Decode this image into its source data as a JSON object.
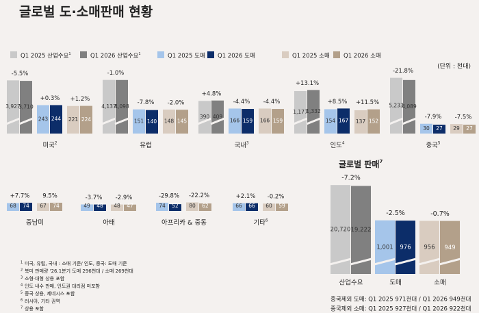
{
  "title": "글로벌 도·소매판매 현황",
  "legend": [
    {
      "label": "Q1 2025 산업수요",
      "note": "1",
      "color": "#c9c9c9"
    },
    {
      "label": "Q1 2026 산업수요",
      "note": "1",
      "color": "#808080"
    },
    {
      "label": "Q1 2025 도매",
      "color": "#a5c5ea"
    },
    {
      "label": "Q1 2026 도매",
      "color": "#0c2d69"
    },
    {
      "label": "Q1 2025 소매",
      "color": "#d9ccc0"
    },
    {
      "label": "Q1 2026 소매",
      "color": "#b3a08a"
    }
  ],
  "unit": "(단위 : 천대)",
  "regions": [
    {
      "name": "미국",
      "note": "2",
      "groups": [
        {
          "values": [
            3927,
            3710
          ],
          "value_labels": [
            "3,927",
            "3,710"
          ],
          "change": "-5.5%"
        },
        {
          "values": [
            243,
            244
          ],
          "change": "+0.3%"
        },
        {
          "values": [
            221,
            224
          ],
          "change": "+1.2%"
        }
      ]
    },
    {
      "name": "유럽",
      "groups": [
        {
          "values": [
            4137,
            4098
          ],
          "value_labels": [
            "4,137",
            "4,098"
          ],
          "change": "-1.0%"
        },
        {
          "values": [
            151,
            140
          ],
          "change": "-7.8%"
        },
        {
          "values": [
            148,
            145
          ],
          "change": "-2.0%"
        }
      ]
    },
    {
      "name": "국내",
      "note": "3",
      "groups": [
        {
          "values": [
            390,
            409
          ],
          "change": "+4.8%"
        },
        {
          "values": [
            166,
            159
          ],
          "change": "-4.4%"
        },
        {
          "values": [
            166,
            159
          ],
          "change": "-4.4%"
        }
      ]
    },
    {
      "name": "인도",
      "note": "4",
      "groups": [
        {
          "values": [
            1177,
            1332
          ],
          "value_labels": [
            "1,177",
            "1,332"
          ],
          "change": "+13.1%"
        },
        {
          "values": [
            154,
            167
          ],
          "change": "+8.5%"
        },
        {
          "values": [
            137,
            152
          ],
          "change": "+11.5%"
        }
      ]
    },
    {
      "name": "중국",
      "note": "5",
      "groups": [
        {
          "values": [
            5233,
            4089
          ],
          "value_labels": [
            "5,233",
            "4,089"
          ],
          "change": "-21.8%"
        },
        {
          "values": [
            30,
            27
          ],
          "change": "-7.9%"
        },
        {
          "values": [
            29,
            27
          ],
          "change": "-7.5%"
        }
      ]
    }
  ],
  "other_regions": [
    {
      "name": "중남미",
      "groups": [
        {
          "values": [
            68,
            74
          ],
          "change": "+7.7%"
        },
        {
          "values": [
            67,
            74
          ],
          "change": "9.5%"
        }
      ]
    },
    {
      "name": "아태",
      "groups": [
        {
          "values": [
            49,
            48
          ],
          "change": "-3.7%"
        },
        {
          "values": [
            48,
            47
          ],
          "change": "-2.9%"
        }
      ]
    },
    {
      "name": "아프리카 & 중동",
      "groups": [
        {
          "values": [
            74,
            52
          ],
          "change": "-29.8%"
        },
        {
          "values": [
            80,
            62
          ],
          "change": "-22.2%"
        }
      ]
    },
    {
      "name": "기타",
      "note": "6",
      "groups": [
        {
          "values": [
            66,
            66
          ],
          "change": "+2.1%"
        },
        {
          "values": [
            60,
            59
          ],
          "change": "-0.2%"
        }
      ]
    }
  ],
  "global": {
    "title": "글로벌 판매",
    "note": "7",
    "groups": [
      {
        "name": "산업수요",
        "values": [
          20720,
          19222
        ],
        "value_labels": [
          "20,720",
          "19,222"
        ],
        "change": "-7.2%"
      },
      {
        "name": "도매",
        "values": [
          1001,
          976
        ],
        "value_labels": [
          "1,001",
          "976"
        ],
        "change": "-2.5%"
      },
      {
        "name": "소매",
        "values": [
          956,
          949
        ],
        "change": "-0.7%"
      }
    ],
    "notes": [
      "중국제외 도매: Q1 2025 971천대 / Q1 2026 949천대",
      "중국제외 소매: Q1 2025 927천대 / Q1 2026 922천대"
    ]
  },
  "footnotes": [
    {
      "num": "1",
      "text": "미국, 유럽, 국내 : 소매 기준/ 인도, 중국: 도매 기준"
    },
    {
      "num": "2",
      "text": "북미 판매량 '26.1분기 도매 296천대 / 소매 269천대"
    },
    {
      "num": "3",
      "text": "소형·대형 상용 포함"
    },
    {
      "num": "4",
      "text": "인도 내수 판매, 인도권 대리점 미포함"
    },
    {
      "num": "5",
      "text": "중국 상용, 제네시스 포함"
    },
    {
      "num": "6",
      "text": "러시아, 기타 권역"
    },
    {
      "num": "7",
      "text": "상용 포함"
    }
  ]
}
